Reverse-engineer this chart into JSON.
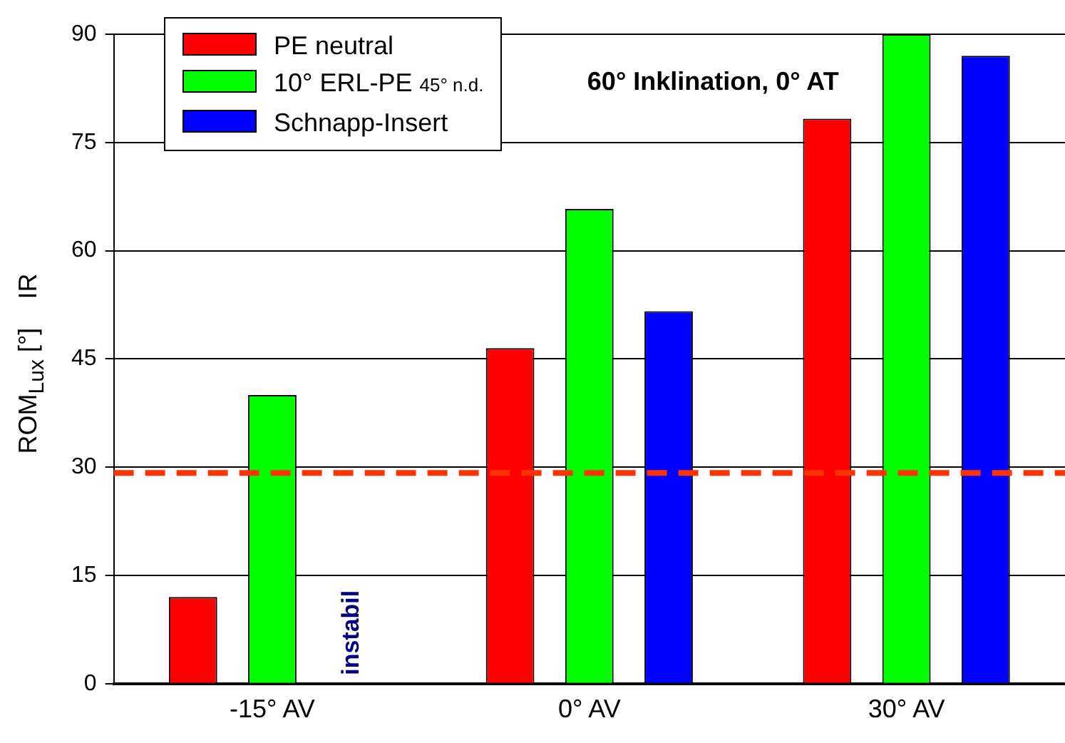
{
  "chart_data": {
    "type": "bar",
    "title": "60° Inklination, 0° AT",
    "ylabel": "ROM$_{Lux}$ [°]    IR",
    "categories": [
      "-15° AV",
      "0° AV",
      "30° AV"
    ],
    "series": [
      {
        "name": "PE neutral",
        "color": "#ff0000",
        "values": [
          12,
          46.5,
          78.3
        ]
      },
      {
        "name": "10° ERL-PE $_{45° n.d.}$",
        "color": "#00ff00",
        "values": [
          40,
          65.8,
          90
        ]
      },
      {
        "name": "Schnapp-Insert",
        "color": "#0000ff",
        "values": [
          null,
          51.6,
          87
        ]
      }
    ],
    "ylim": [
      0,
      90
    ],
    "yticks": [
      0,
      15,
      30,
      45,
      60,
      75,
      90
    ],
    "grid": "y",
    "legend": "top left",
    "ref_lines": [
      {
        "axis": "y",
        "value": 29.2,
        "color": "#ff3300",
        "line_style": "dashed"
      }
    ],
    "annotations": [
      {
        "text": "instabil",
        "x": "-15° AV",
        "y": 0
      }
    ]
  }
}
